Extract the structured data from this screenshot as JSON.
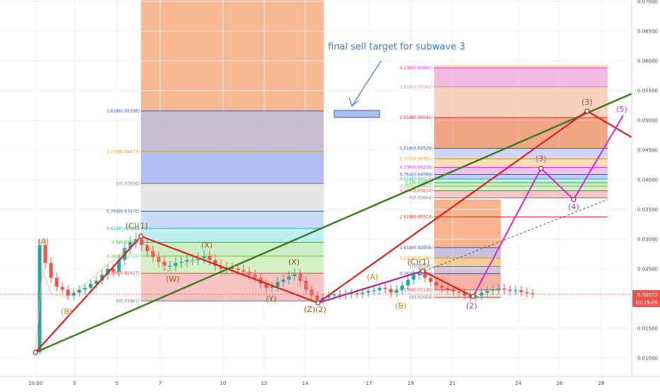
{
  "chart_data": {
    "type": "candlestick",
    "x_ticks": [
      "10:00",
      "3",
      "5",
      "7",
      "10",
      "12",
      "14",
      "17",
      "19",
      "21",
      "24",
      "26",
      "28"
    ],
    "y_ticks": [
      "0.07000",
      "0.06500",
      "0.06000",
      "0.05500",
      "0.05000",
      "0.04500",
      "0.04000",
      "0.03500",
      "0.03000",
      "0.02500",
      "0.02000",
      "0.01500",
      "0.01000"
    ],
    "price_tag": {
      "price": "0.02072",
      "countdown": "03:19:05",
      "value": 0.02072
    },
    "annotation": "final sell target for subwave 3",
    "fib_sets": [
      {
        "levels": [
          {
            "label": "1.618(0.05156)",
            "value": 0.05156,
            "color": "#3d52b8"
          },
          {
            "label": "1.272(0.04473)",
            "value": 0.04473,
            "color": "#e29a1c"
          },
          {
            "label": "1(0.03936)",
            "value": 0.03936,
            "color": "#7a7a7a"
          },
          {
            "label": "0.764(0.03470)",
            "value": 0.0347,
            "color": "#3d52b8"
          },
          {
            "label": "0.618(0.03181)",
            "value": 0.03181,
            "color": "#23b5b5"
          },
          {
            "label": "0.5(0.02948)",
            "value": 0.02948,
            "color": "#3aa935"
          },
          {
            "label": "0.382(0.02715)",
            "value": 0.02715,
            "color": "#7ab93a"
          },
          {
            "label": "0.236(0.02427)",
            "value": 0.02427,
            "color": "#e04a4a"
          },
          {
            "label": "0(0.01961)",
            "value": 0.01961,
            "color": "#7a7a7a"
          }
        ]
      },
      {
        "levels": [
          {
            "label": "4.236(0.05881)",
            "value": 0.05881,
            "color": "#e03ad3"
          },
          {
            "label": "3.618(0.05562)",
            "value": 0.05562,
            "color": "#b89d9d"
          },
          {
            "label": "2.618(0.05046)",
            "value": 0.05046,
            "color": "#e03030"
          },
          {
            "label": "1.618(0.04529)",
            "value": 0.04529,
            "color": "#3d52b8"
          },
          {
            "label": "1.272(0.04351)",
            "value": 0.04351,
            "color": "#e29a1c"
          },
          {
            "label": "4.236(0.04208)",
            "value": 0.04208,
            "color": "#e03ad3"
          },
          {
            "label": "0.764(0.04089)",
            "value": 0.04089,
            "color": "#3d52b8"
          },
          {
            "label": "0.618(0.04014)",
            "value": 0.04014,
            "color": "#23b5b5"
          },
          {
            "label": "0.5(0.03953)",
            "value": 0.03953,
            "color": "#3aa935"
          },
          {
            "label": "0.382(0.03892)",
            "value": 0.03892,
            "color": "#7ab93a"
          },
          {
            "label": "0.236(0.03816)",
            "value": 0.03816,
            "color": "#e04a4a"
          },
          {
            "label": "0(0.03694)",
            "value": 0.03694,
            "color": "#7a7a7a"
          },
          {
            "label": "2.618(0.03374)",
            "value": 0.03374,
            "color": "#e03030"
          }
        ]
      },
      {
        "levels": [
          {
            "label": "1.618(0.02858)",
            "value": 0.02858,
            "color": "#3d52b8"
          },
          {
            "label": "1.272(0.02680)",
            "value": 0.0268,
            "color": "#e29a1c"
          },
          {
            "label": "1(0.02541)",
            "value": 0.02541,
            "color": "#7a7a7a"
          },
          {
            "label": "0.764(0.02419)",
            "value": 0.02419,
            "color": "#3d52b8"
          },
          {
            "label": "0.236(0.02146)",
            "value": 0.02146,
            "color": "#e04a4a"
          },
          {
            "label": "0(0.02024)",
            "value": 0.02024,
            "color": "#7a7a7a"
          }
        ]
      }
    ],
    "wave_labels": [
      {
        "text": "(A)",
        "color": "#c98a12"
      },
      {
        "text": "(B)",
        "color": "#c98a12"
      },
      {
        "text": "(C)(1)",
        "color": "#8a5a10"
      },
      {
        "text": "(W)",
        "color": "#8a5a10"
      },
      {
        "text": "(X)",
        "color": "#8a5a10"
      },
      {
        "text": "(Y)",
        "color": "#8a5a10"
      },
      {
        "text": "(X)",
        "color": "#8a5a10"
      },
      {
        "text": "(Z)(2)",
        "color": "#8a5a10"
      },
      {
        "text": "(A)",
        "color": "#c98a12"
      },
      {
        "text": "(B)",
        "color": "#c98a12"
      },
      {
        "text": "(C)(1)",
        "color": "#8a5a10"
      },
      {
        "text": "(2)",
        "color": "#c030c0"
      },
      {
        "text": "(3)",
        "color": "#c030c0"
      },
      {
        "text": "(4)",
        "color": "#c030c0"
      },
      {
        "text": "(5)",
        "color": "#c030c0"
      },
      {
        "text": "(3)",
        "color": "#8a5a10"
      }
    ],
    "colors": {
      "up_candle": "#26a69a",
      "down_candle": "#ef5350",
      "trend_line": "#3c7d1e",
      "impulse_red": "#e02020",
      "projection_magenta": "#d826d8",
      "price_tag": "#ef5350"
    }
  }
}
